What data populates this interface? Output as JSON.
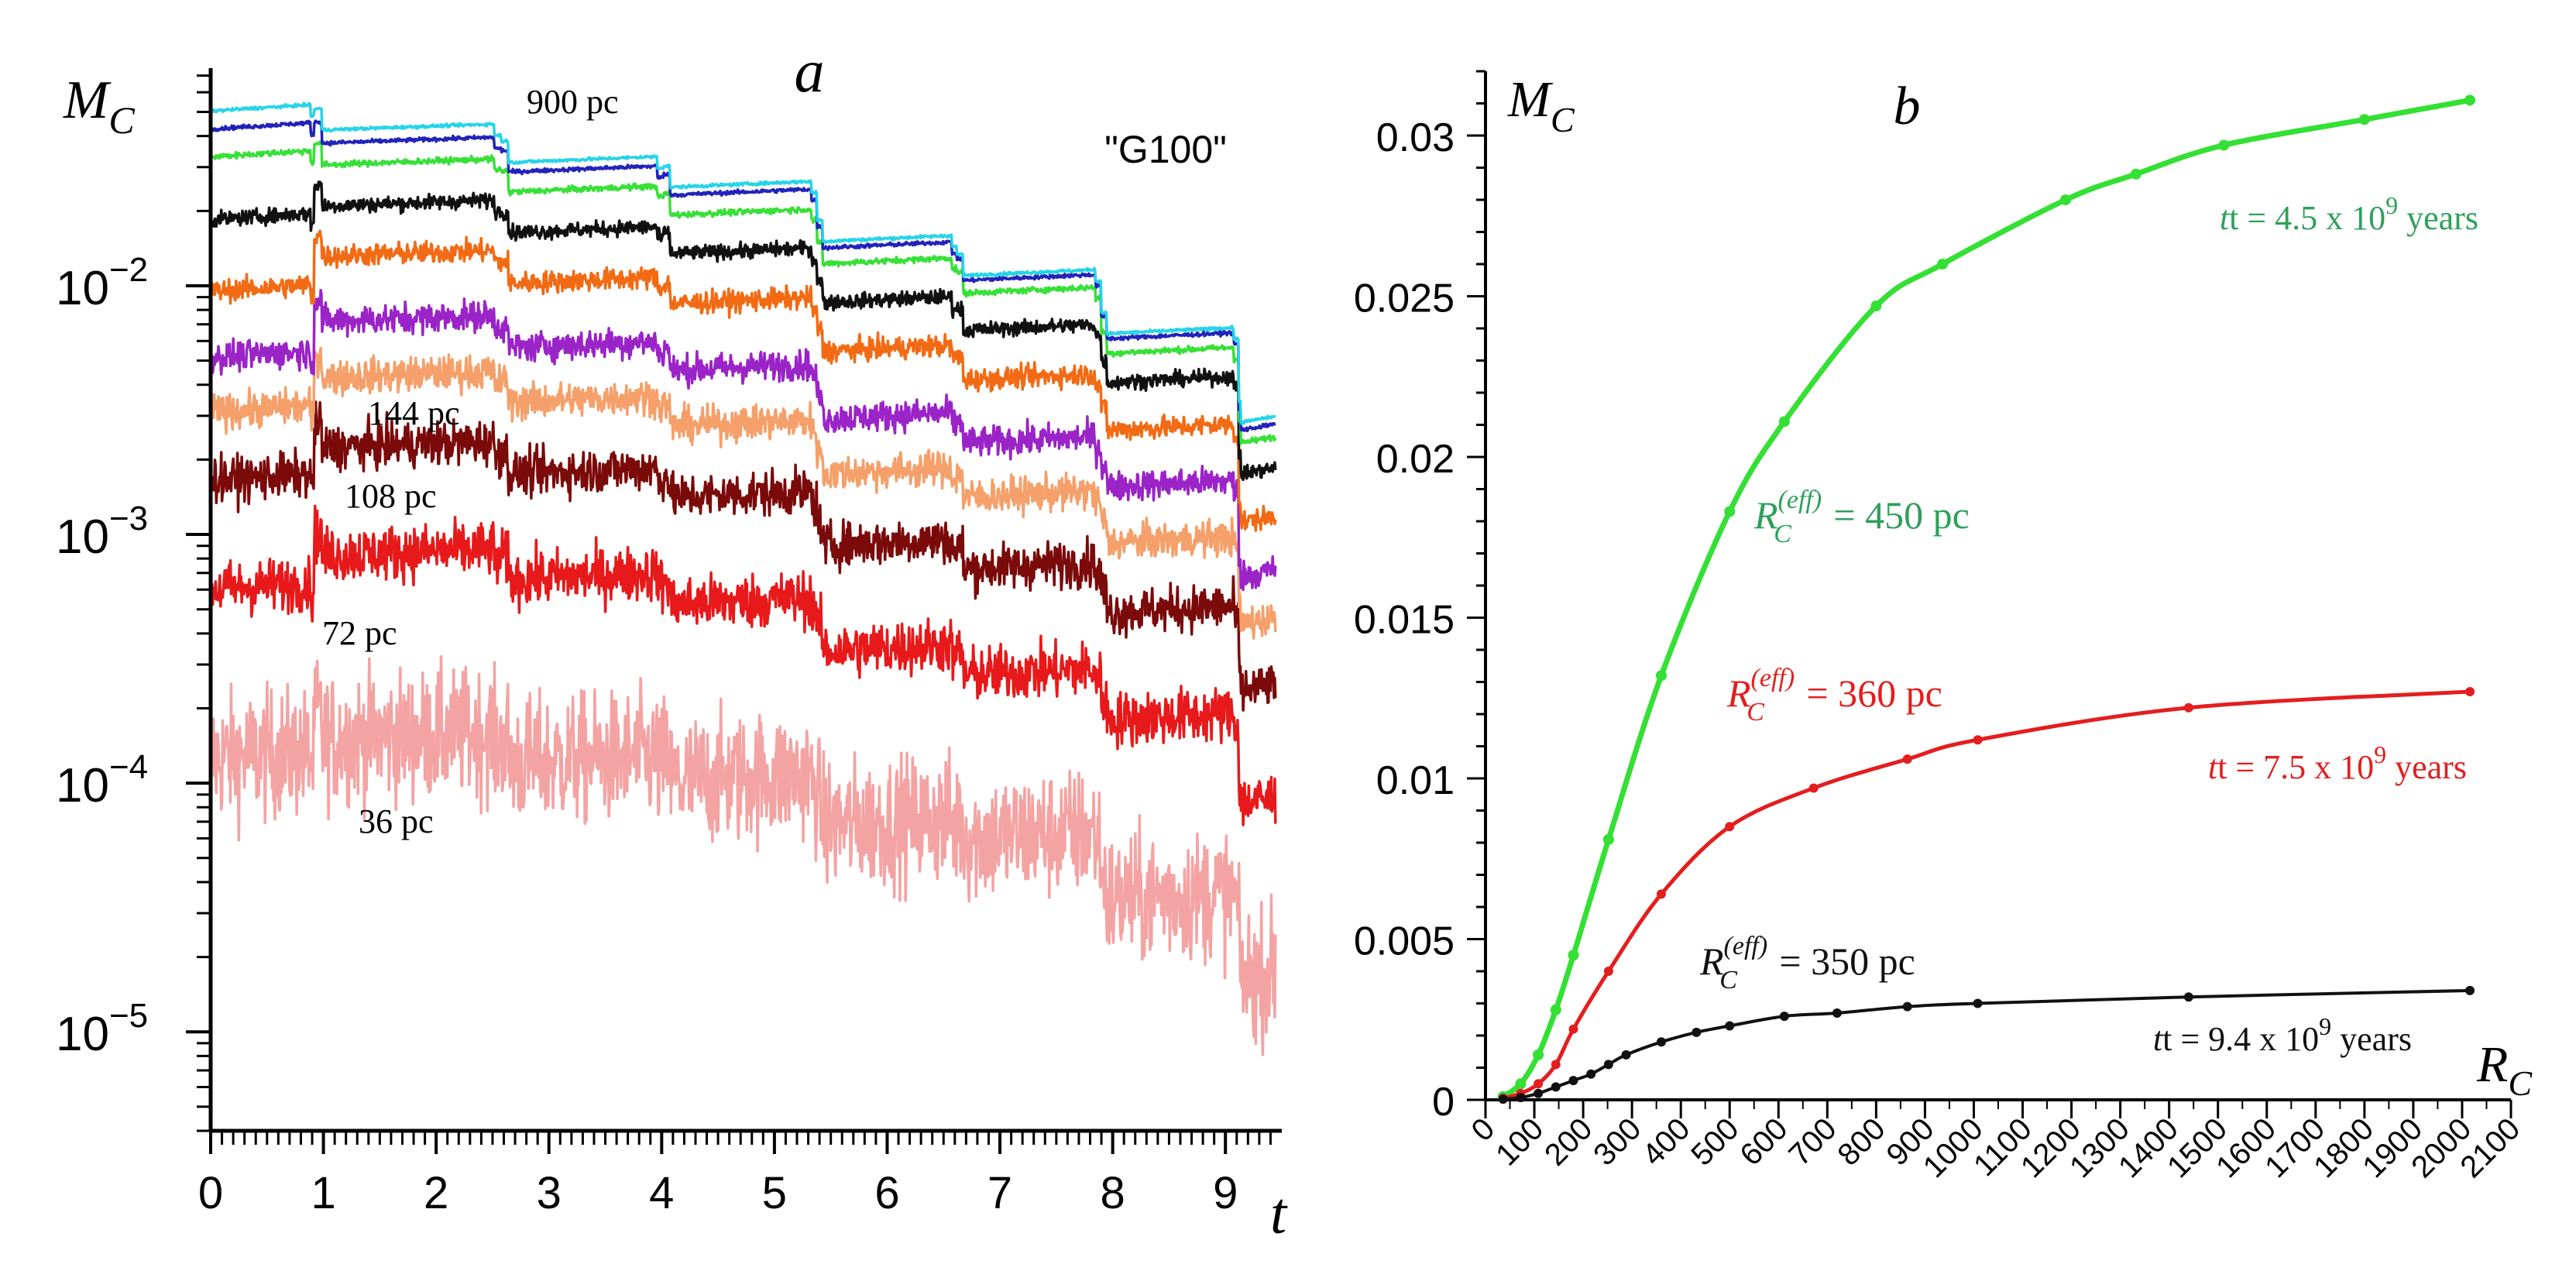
{
  "chart_data": [
    {
      "panel": "a",
      "type": "line",
      "panel_label": "a",
      "model_label": "\"G100\"",
      "ylabel_main": "M",
      "ylabel_sub": "C",
      "xlabel": "t",
      "yscale": "log",
      "xlim": [
        0,
        9.5
      ],
      "ylim": [
        4e-06,
        0.075
      ],
      "xticks": [
        0,
        1,
        2,
        3,
        4,
        5,
        6,
        7,
        8,
        9
      ],
      "xtick_labels": [
        "0",
        "1",
        "2",
        "3",
        "4",
        "5",
        "6",
        "7",
        "8",
        "9"
      ],
      "yticks": [
        0.01,
        0.001,
        0.0001,
        1e-05
      ],
      "ytick_bases": [
        "10",
        "10",
        "10",
        "10"
      ],
      "ytick_exponents": [
        "−2",
        "−3",
        "−4",
        "−5"
      ],
      "segment_breaks": [
        0,
        0.92,
        2.58,
        4.02,
        5.38,
        6.62,
        7.9,
        9.12,
        9.45
      ],
      "series": [
        {
          "name": "36 pc",
          "color": "#f4a3a3",
          "noise": 0.13,
          "levels": [
            0.00013,
            0.000155,
            0.000125,
            0.000105,
            7e-05,
            6.2e-05,
            3.5e-05,
            1.7e-05
          ]
        },
        {
          "name": "72 pc",
          "color": "#e8191a",
          "noise": 0.055,
          "levels": [
            0.00062,
            0.00085,
            0.00068,
            0.00054,
            0.00035,
            0.00028,
            0.000185,
            8.5e-05
          ]
        },
        {
          "name": "108 pc",
          "color": "#7b0a0a",
          "noise": 0.045,
          "levels": [
            0.0017,
            0.0023,
            0.0018,
            0.00145,
            0.00093,
            0.00075,
            0.0005,
            0.00024
          ]
        },
        {
          "name": "144 pc",
          "color": "#f5a06a",
          "noise": 0.035,
          "levels": [
            0.0032,
            0.0044,
            0.0035,
            0.0028,
            0.0018,
            0.00145,
            0.00095,
            0.00045
          ]
        },
        {
          "name": "",
          "color": "#9b24c8",
          "noise": 0.03,
          "levels": [
            0.0053,
            0.0074,
            0.0058,
            0.0047,
            0.003,
            0.0024,
            0.0016,
            0.0007
          ]
        },
        {
          "name": "",
          "color": "#f26b14",
          "noise": 0.022,
          "levels": [
            0.0098,
            0.0135,
            0.0105,
            0.0087,
            0.0056,
            0.0043,
            0.0027,
            0.00115
          ]
        },
        {
          "name": "",
          "color": "#111111",
          "noise": 0.015,
          "levels": [
            0.019,
            0.0215,
            0.0168,
            0.0138,
            0.0088,
            0.0068,
            0.0042,
            0.0018
          ]
        },
        {
          "name": "",
          "color": "#37e037",
          "noise": 0.006,
          "levels": [
            0.034,
            0.0315,
            0.0245,
            0.0198,
            0.0126,
            0.0096,
            0.0055,
            0.0024
          ]
        },
        {
          "name": "",
          "color": "#2222bb",
          "noise": 0.004,
          "levels": [
            0.044,
            0.0385,
            0.0295,
            0.0238,
            0.0146,
            0.0108,
            0.0063,
            0.0027
          ]
        },
        {
          "name": "900 pc",
          "color": "#26d4e8",
          "noise": 0.003,
          "levels": [
            0.052,
            0.0435,
            0.0322,
            0.0256,
            0.0155,
            0.0113,
            0.0066,
            0.0029
          ]
        }
      ],
      "annotations": [
        "900 pc",
        "144 pc",
        "108 pc",
        "72 pc",
        "36 pc"
      ]
    },
    {
      "panel": "b",
      "type": "line",
      "panel_label": "b",
      "ylabel_main": "M",
      "ylabel_sub": "C",
      "xlabel_main": "R",
      "xlabel_sub": "C",
      "xlim": [
        0,
        2100
      ],
      "ylim": [
        0,
        0.032
      ],
      "xticks": [
        0,
        100,
        200,
        300,
        400,
        500,
        600,
        700,
        800,
        900,
        1000,
        1100,
        1200,
        1300,
        1400,
        1500,
        1600,
        1700,
        1800,
        1900,
        2000,
        2100
      ],
      "xtick_labels": [
        "0",
        "100",
        "200",
        "300",
        "400",
        "500",
        "600",
        "700",
        "800",
        "900",
        "1000",
        "1100",
        "1200",
        "1300",
        "1400",
        "1500",
        "1600",
        "1700",
        "1800",
        "1900",
        "2000",
        "2100"
      ],
      "yticks": [
        0,
        0.005,
        0.01,
        0.015,
        0.02,
        0.025,
        0.03
      ],
      "ytick_labels": [
        "0",
        "0.005",
        "0.01",
        "0.015",
        "0.02",
        "0.025",
        "0.03"
      ],
      "series": [
        {
          "name": "t = 4.5 x 10^9 years",
          "color": "#33e033",
          "label_color": "#2ea05a",
          "x": [
            36,
            72,
            108,
            144,
            180,
            252,
            360,
            500,
            612,
            800,
            936,
            1188,
            1332,
            1512,
            1800,
            2016
          ],
          "y": [
            0.0001,
            0.0005,
            0.0014,
            0.0028,
            0.0045,
            0.0081,
            0.0132,
            0.0183,
            0.0211,
            0.0247,
            0.026,
            0.028,
            0.0288,
            0.0297,
            0.0305,
            0.0311
          ],
          "time_label": "t = 4.5 x 10",
          "time_exp": "9",
          "time_unit": " years",
          "reff_main": "R",
          "reff_sub": "C",
          "reff_sup": "(eff)",
          "reff_value": " = 450 pc"
        },
        {
          "name": "t = 7.5 x 10^9 years",
          "color": "#e31e1e",
          "label_color": "#e31e1e",
          "x": [
            36,
            72,
            108,
            144,
            180,
            252,
            360,
            500,
            672,
            864,
            1008,
            1440,
            2016
          ],
          "y": [
            5e-05,
            0.0002,
            0.0005,
            0.0011,
            0.0022,
            0.004,
            0.0064,
            0.0085,
            0.0097,
            0.0106,
            0.0112,
            0.0122,
            0.0127
          ],
          "time_label": "t = 7.5 x 10",
          "time_exp": "9",
          "time_unit": " years",
          "reff_main": "R",
          "reff_sub": "C",
          "reff_sup": "(eff)",
          "reff_value": " = 360 pc"
        },
        {
          "name": "t = 9.4 x 10^9 years",
          "color": "#111111",
          "label_color": "#111111",
          "x": [
            36,
            72,
            108,
            144,
            180,
            216,
            252,
            288,
            360,
            432,
            500,
            612,
            720,
            864,
            1008,
            1440,
            2016
          ],
          "y": [
            2e-05,
            7e-05,
            0.0002,
            0.0004,
            0.0006,
            0.0008,
            0.0011,
            0.0014,
            0.0018,
            0.0021,
            0.0023,
            0.0026,
            0.0027,
            0.0029,
            0.003,
            0.0032,
            0.0034
          ],
          "time_label": "t = 9.4 x 10",
          "time_exp": "9",
          "time_unit": " years",
          "reff_main": "R",
          "reff_sub": "C",
          "reff_sup": "(eff)",
          "reff_value": " = 350 pc"
        }
      ]
    }
  ]
}
